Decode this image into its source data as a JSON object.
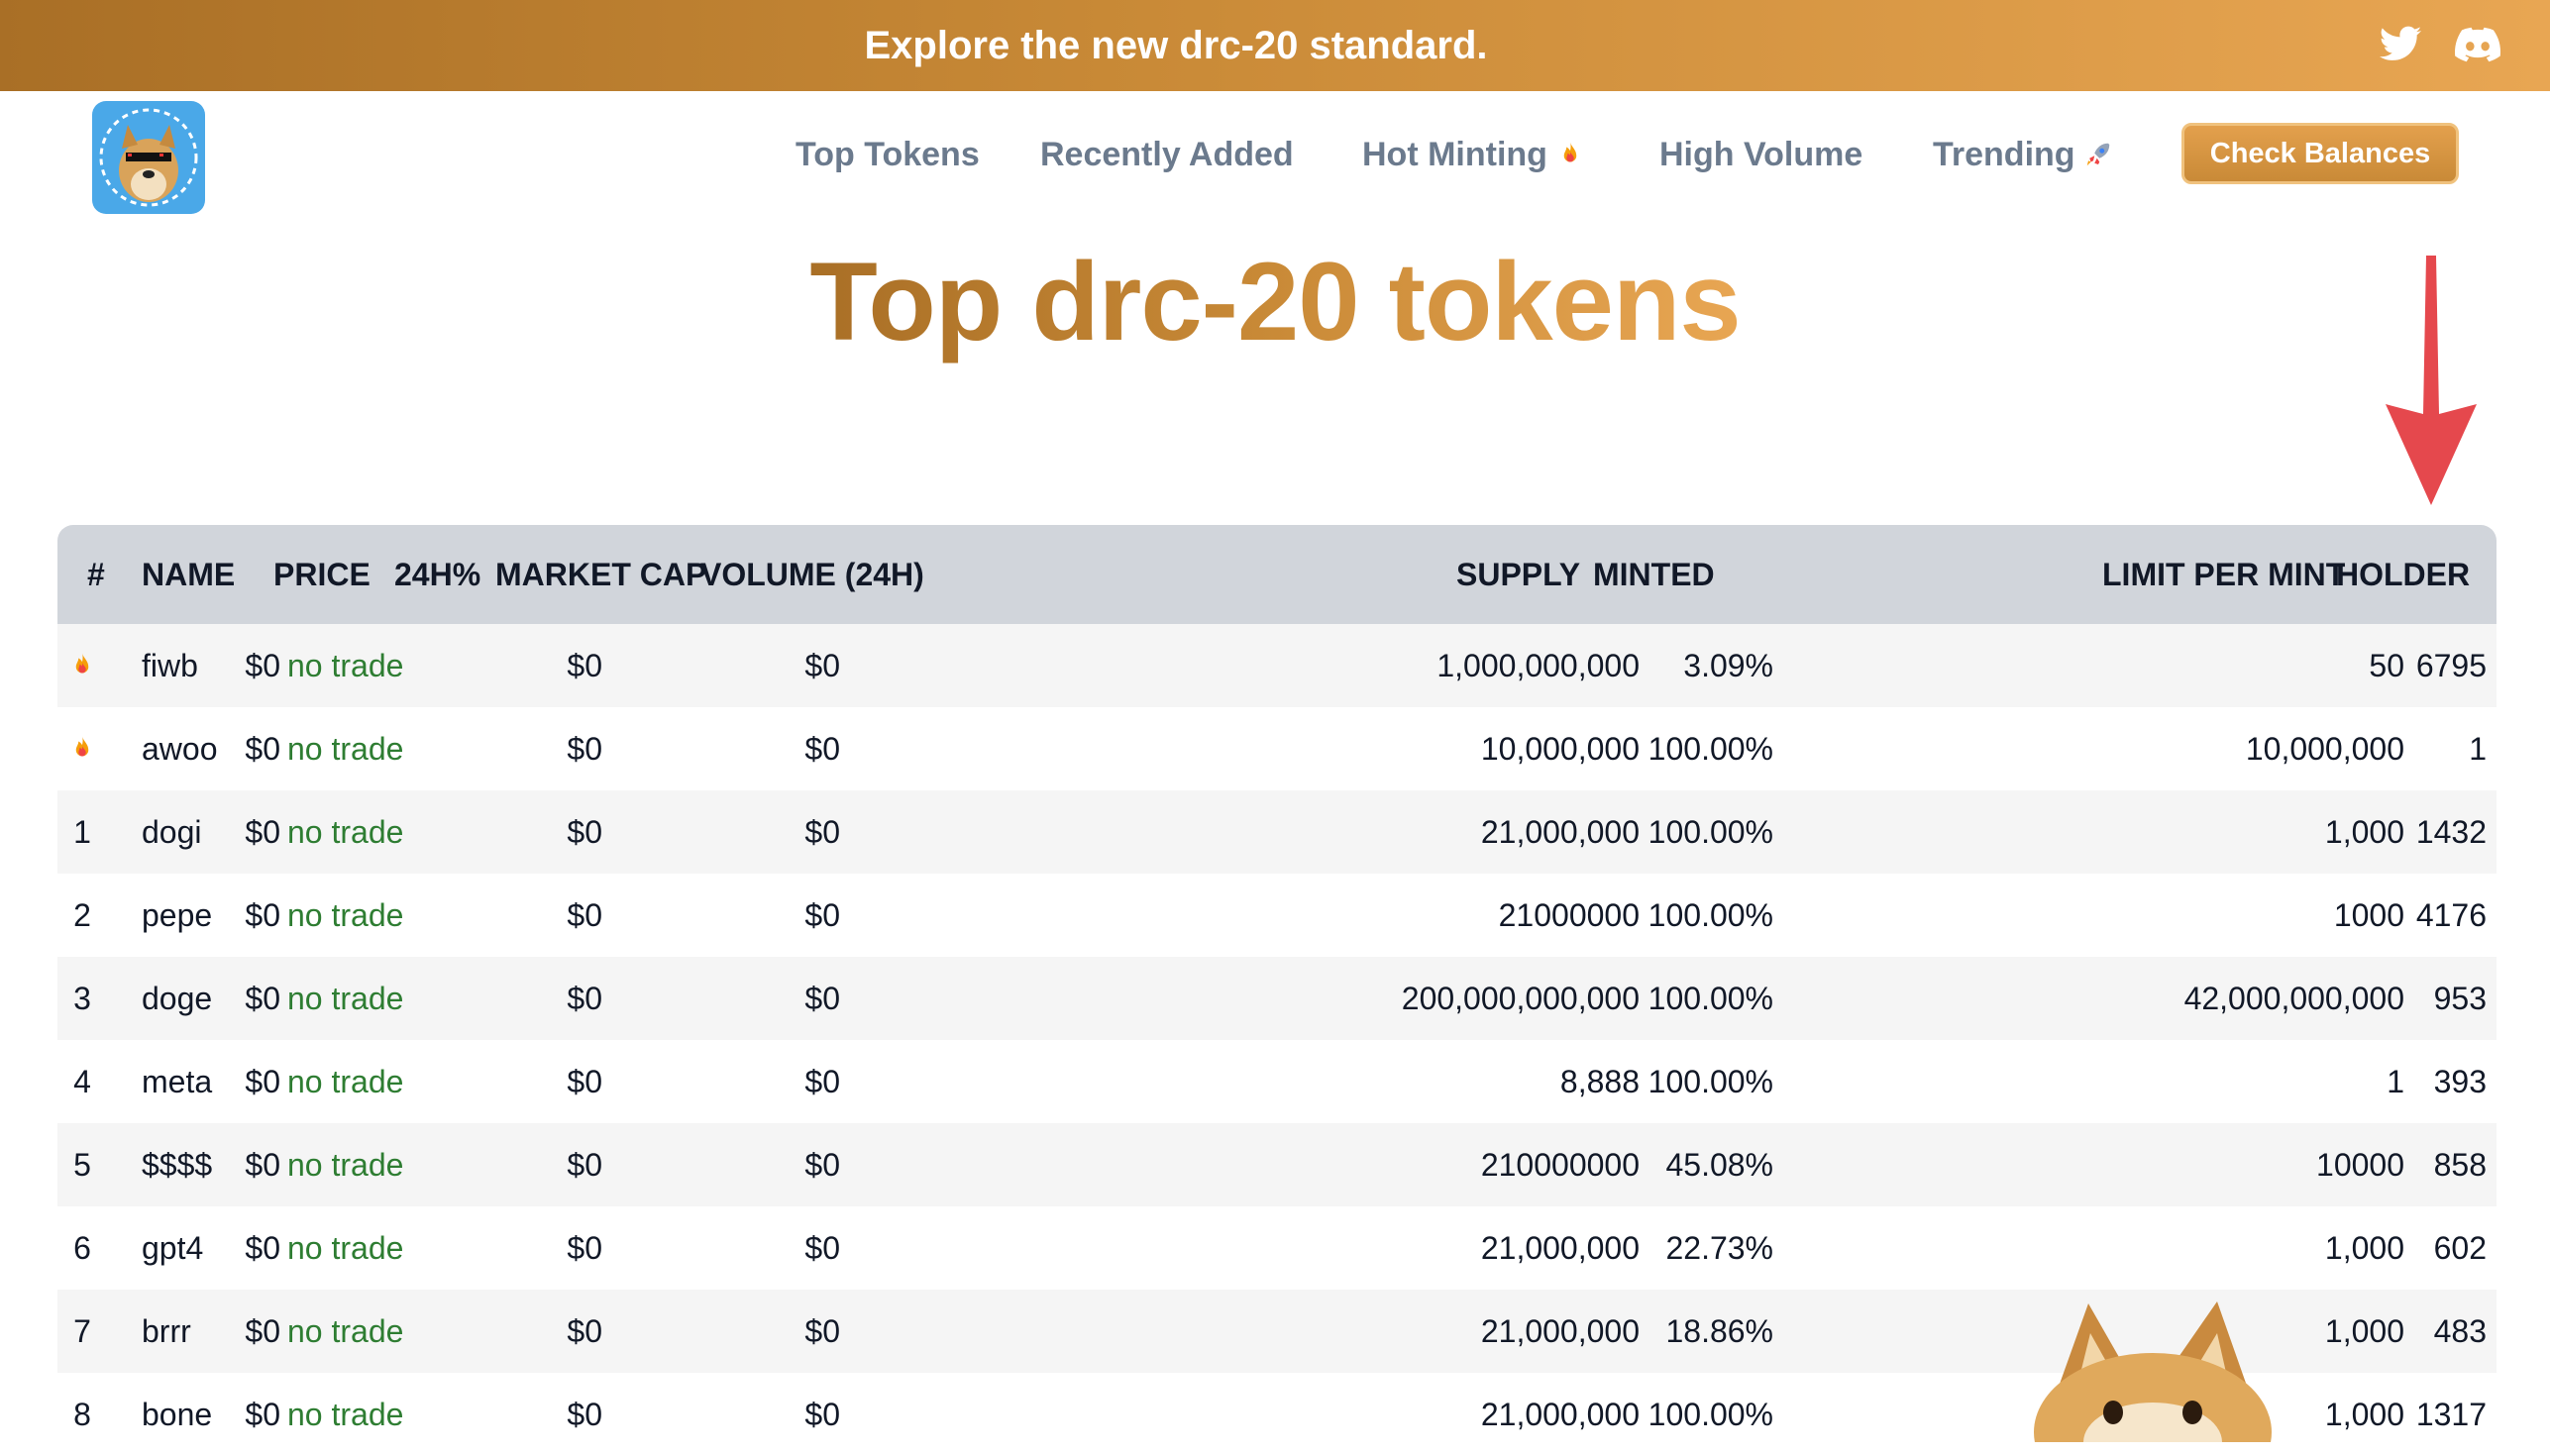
{
  "banner": {
    "message": "Explore the new drc-20 standard."
  },
  "social": [
    "twitter-icon",
    "discord-icon"
  ],
  "logo": {
    "alt": "doge-labs-logo"
  },
  "nav": {
    "items": [
      {
        "label": "Top Tokens",
        "emoji": ""
      },
      {
        "label": "Recently Added",
        "emoji": ""
      },
      {
        "label": "Hot Minting",
        "emoji": "fire-icon"
      },
      {
        "label": "High Volume",
        "emoji": ""
      },
      {
        "label": "Trending",
        "emoji": "rocket-icon"
      }
    ],
    "check_balances": "Check Balances"
  },
  "hero": {
    "title": "Top drc-20 tokens"
  },
  "table": {
    "headers": {
      "rank": "#",
      "name": "NAME",
      "price": "PRICE",
      "change": "24H%",
      "market_cap": "MARKET CAP",
      "volume": "VOLUME (24H)",
      "supply": "SUPPLY",
      "minted": "MINTED",
      "limit": "LIMIT PER MINT",
      "holder": "HOLDER"
    },
    "rows": [
      {
        "rank": "",
        "hot": true,
        "name": "fiwb",
        "price": "$0",
        "change": "no trade",
        "market_cap": "$0",
        "volume": "$0",
        "supply": "1,000,000,000",
        "minted": "3.09%",
        "limit": "50",
        "holder": "6795"
      },
      {
        "rank": "",
        "hot": true,
        "name": "awoo",
        "price": "$0",
        "change": "no trade",
        "market_cap": "$0",
        "volume": "$0",
        "supply": "10,000,000",
        "minted": "100.00%",
        "limit": "10,000,000",
        "holder": "1"
      },
      {
        "rank": "1",
        "hot": false,
        "name": "dogi",
        "price": "$0",
        "change": "no trade",
        "market_cap": "$0",
        "volume": "$0",
        "supply": "21,000,000",
        "minted": "100.00%",
        "limit": "1,000",
        "holder": "1432"
      },
      {
        "rank": "2",
        "hot": false,
        "name": "pepe",
        "price": "$0",
        "change": "no trade",
        "market_cap": "$0",
        "volume": "$0",
        "supply": "21000000",
        "minted": "100.00%",
        "limit": "1000",
        "holder": "4176"
      },
      {
        "rank": "3",
        "hot": false,
        "name": "doge",
        "price": "$0",
        "change": "no trade",
        "market_cap": "$0",
        "volume": "$0",
        "supply": "200,000,000,000",
        "minted": "100.00%",
        "limit": "42,000,000,000",
        "holder": "953"
      },
      {
        "rank": "4",
        "hot": false,
        "name": "meta",
        "price": "$0",
        "change": "no trade",
        "market_cap": "$0",
        "volume": "$0",
        "supply": "8,888",
        "minted": "100.00%",
        "limit": "1",
        "holder": "393"
      },
      {
        "rank": "5",
        "hot": false,
        "name": "$$$$",
        "price": "$0",
        "change": "no trade",
        "market_cap": "$0",
        "volume": "$0",
        "supply": "210000000",
        "minted": "45.08%",
        "limit": "10000",
        "holder": "858"
      },
      {
        "rank": "6",
        "hot": false,
        "name": "gpt4",
        "price": "$0",
        "change": "no trade",
        "market_cap": "$0",
        "volume": "$0",
        "supply": "21,000,000",
        "minted": "22.73%",
        "limit": "1,000",
        "holder": "602"
      },
      {
        "rank": "7",
        "hot": false,
        "name": "brrr",
        "price": "$0",
        "change": "no trade",
        "market_cap": "$0",
        "volume": "$0",
        "supply": "21,000,000",
        "minted": "18.86%",
        "limit": "1,000",
        "holder": "483"
      },
      {
        "rank": "8",
        "hot": false,
        "name": "bone",
        "price": "$0",
        "change": "no trade",
        "market_cap": "$0",
        "volume": "$0",
        "supply": "21,000,000",
        "minted": "100.00%",
        "limit": "1,000",
        "holder": "1317"
      }
    ]
  },
  "colors": {
    "brand_dark": "#a96f26",
    "brand_light": "#e8a653",
    "no_trade": "#2e7d32",
    "header_bg": "#d1d5db",
    "arrow": "#e5484d"
  }
}
